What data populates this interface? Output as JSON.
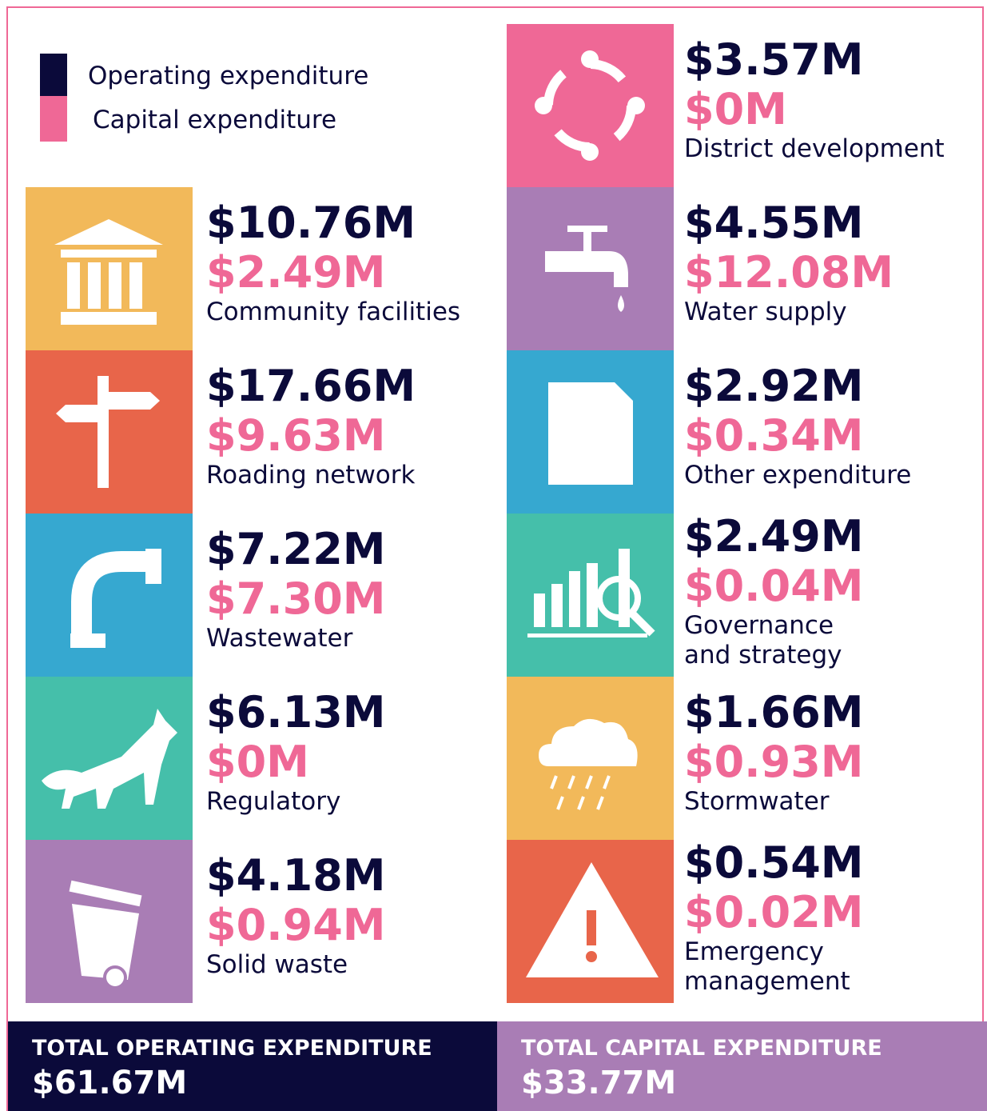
{
  "legend": {
    "operating": "Operating expenditure",
    "capital": "Capital expenditure"
  },
  "left_column": [
    {
      "operating": "$10.76M",
      "capital": "$2.49M",
      "name": "Community facilities",
      "color": "#f2b95a"
    },
    {
      "operating": "$17.66M",
      "capital": "$9.63M",
      "name": "Roading network",
      "color": "#e8654a"
    },
    {
      "operating": "$7.22M",
      "capital": "$7.30M",
      "name": "Wastewater",
      "color": "#36a8d0"
    },
    {
      "operating": "$6.13M",
      "capital": "$0M",
      "name": "Regulatory",
      "color": "#45bfaa"
    },
    {
      "operating": "$4.18M",
      "capital": "$0.94M",
      "name": "Solid waste",
      "color": "#a97db5"
    }
  ],
  "right_column": [
    {
      "operating": "$3.57M",
      "capital": "$0M",
      "name": "District development",
      "color": "#ef6896"
    },
    {
      "operating": "$4.55M",
      "capital": "$12.08M",
      "name": "Water supply",
      "color": "#a97db5"
    },
    {
      "operating": "$2.92M",
      "capital": "$0.34M",
      "name": "Other expenditure",
      "color": "#36a8d0"
    },
    {
      "operating": "$2.49M",
      "capital": "$0.04M",
      "name": "Governance\nand strategy",
      "color": "#45bfaa"
    },
    {
      "operating": "$1.66M",
      "capital": "$0.93M",
      "name": "Stormwater",
      "color": "#f2b95a"
    },
    {
      "operating": "$0.54M",
      "capital": "$0.02M",
      "name": "Emergency\nmanagement",
      "color": "#e8654a"
    }
  ],
  "totals": {
    "operating_label": "TOTAL OPERATING EXPENDITURE",
    "operating_value": "$61.67M",
    "capital_label": "TOTAL CAPITAL EXPENDITURE",
    "capital_value": "$33.77M"
  }
}
